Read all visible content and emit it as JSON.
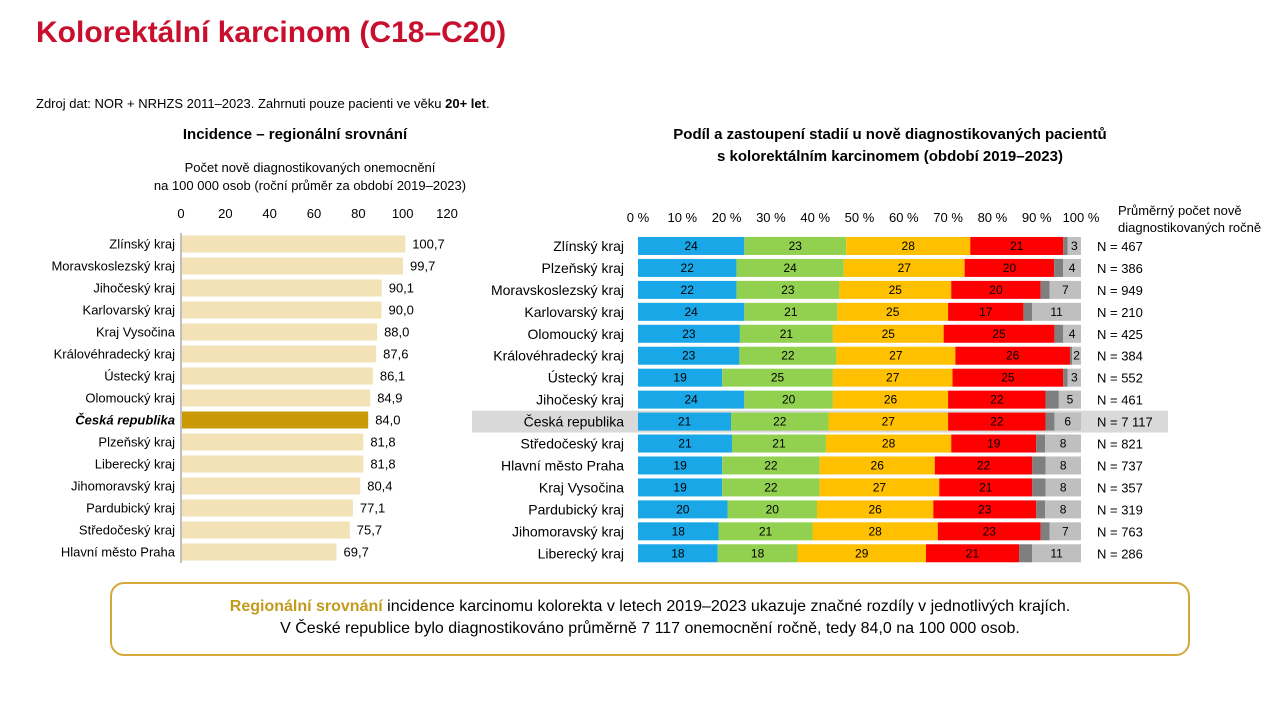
{
  "title": "Kolorektální karcinom (C18–C20)",
  "source": {
    "text": "Zdroj dat: NOR + NRHZS 2011–2023. Zahrnuti pouze pacienti ve věku ",
    "bold": "20+ let",
    "end": "."
  },
  "colors": {
    "bar": "#f2e2b6",
    "highlight_bar": "#c99a06",
    "stage1": "#1aa7e8",
    "stage2": "#92d050",
    "stage3": "#ffc000",
    "stage4": "#ff0000",
    "unknown_dark": "#7f7f7f",
    "unknown_light": "#bfbfbf",
    "highlight_row": "#d9d9d9",
    "accent": "#c8102e"
  },
  "chart_data": [
    {
      "type": "bar",
      "orientation": "horizontal",
      "title": "Incidence – regionální srovnání",
      "xlabel_lines": [
        "Počet nově diagnostikovaných onemocnění",
        "na 100 000 osob (roční průměr za období 2019–2023)"
      ],
      "xlim": [
        0,
        120
      ],
      "xticks": [
        "0",
        "20",
        "40",
        "60",
        "80",
        "100",
        "120"
      ],
      "highlight_category": "Česká republika",
      "categories": [
        "Zlínský kraj",
        "Moravskoslezský kraj",
        "Jihočeský kraj",
        "Karlovarský kraj",
        "Kraj Vysočina",
        "Královéhradecký kraj",
        "Ústecký kraj",
        "Olomoucký kraj",
        "Česká republika",
        "Plzeňský kraj",
        "Liberecký kraj",
        "Jihomoravský kraj",
        "Pardubický kraj",
        "Středočeský kraj",
        "Hlavní město Praha"
      ],
      "values": [
        100.7,
        99.7,
        90.1,
        90.0,
        88.0,
        87.6,
        86.1,
        84.9,
        84.0,
        81.8,
        81.8,
        80.4,
        77.1,
        75.7,
        69.7
      ],
      "value_labels": [
        "100,7",
        "99,7",
        "90,1",
        "90,0",
        "88,0",
        "87,6",
        "86,1",
        "84,9",
        "84,0",
        "81,8",
        "81,8",
        "80,4",
        "77,1",
        "75,7",
        "69,7"
      ]
    },
    {
      "type": "bar",
      "orientation": "horizontal",
      "stacked": "percent",
      "title_lines": [
        "Podíl a zastoupení stadií u nově diagnostikovaných pacientů",
        "s kolorektálním karcinomem (období 2019–2023)"
      ],
      "xlim": [
        0,
        100
      ],
      "xticks": [
        "0 %",
        "10 %",
        "20 %",
        "30 %",
        "40 %",
        "50 %",
        "60 %",
        "70 %",
        "80 %",
        "90 %",
        "100 %"
      ],
      "n_header_lines": [
        "Průměrný počet nově",
        "diagnostikovaných ročně"
      ],
      "highlight_category": "Česká republika",
      "categories": [
        "Zlínský kraj",
        "Plzeňský kraj",
        "Moravskoslezský kraj",
        "Karlovarský kraj",
        "Olomoucký kraj",
        "Královéhradecký kraj",
        "Ústecký kraj",
        "Jihočeský kraj",
        "Česká republika",
        "Středočeský kraj",
        "Hlavní město Praha",
        "Kraj Vysočina",
        "Pardubický kraj",
        "Jihomoravský kraj",
        "Liberecký kraj"
      ],
      "stage_values": [
        [
          24,
          23,
          28,
          21,
          1,
          3
        ],
        [
          22,
          24,
          27,
          20,
          2,
          4
        ],
        [
          22,
          23,
          25,
          20,
          2,
          7
        ],
        [
          24,
          21,
          25,
          17,
          2,
          11
        ],
        [
          23,
          21,
          25,
          25,
          2,
          4
        ],
        [
          23,
          22,
          27,
          26,
          0.5,
          2
        ],
        [
          19,
          25,
          27,
          25,
          1,
          3
        ],
        [
          24,
          20,
          26,
          22,
          3,
          5
        ],
        [
          21,
          22,
          27,
          22,
          2,
          6
        ],
        [
          21,
          21,
          28,
          19,
          2,
          8
        ],
        [
          19,
          22,
          26,
          22,
          3,
          8
        ],
        [
          19,
          22,
          27,
          21,
          3,
          8
        ],
        [
          20,
          20,
          26,
          23,
          2,
          8
        ],
        [
          18,
          21,
          28,
          23,
          2,
          7
        ],
        [
          18,
          18,
          29,
          21,
          3,
          11
        ]
      ],
      "segment_labels": [
        [
          "24",
          "23",
          "28",
          "21",
          "",
          "3"
        ],
        [
          "22",
          "24",
          "27",
          "20",
          "",
          "4"
        ],
        [
          "22",
          "23",
          "25",
          "20",
          "",
          "7"
        ],
        [
          "24",
          "21",
          "25",
          "17",
          "",
          "11"
        ],
        [
          "23",
          "21",
          "25",
          "25",
          "",
          "4"
        ],
        [
          "23",
          "22",
          "27",
          "26",
          "",
          "2"
        ],
        [
          "19",
          "25",
          "27",
          "25",
          "",
          "3"
        ],
        [
          "24",
          "20",
          "26",
          "22",
          "",
          "5"
        ],
        [
          "21",
          "22",
          "27",
          "22",
          "",
          "6"
        ],
        [
          "21",
          "21",
          "28",
          "19",
          "",
          "8"
        ],
        [
          "19",
          "22",
          "26",
          "22",
          "",
          "8"
        ],
        [
          "19",
          "22",
          "27",
          "21",
          "",
          "8"
        ],
        [
          "20",
          "20",
          "26",
          "23",
          "",
          "8"
        ],
        [
          "18",
          "21",
          "28",
          "23",
          "",
          "7"
        ],
        [
          "18",
          "18",
          "29",
          "21",
          "",
          "11"
        ]
      ],
      "n_labels": [
        "N = 467",
        "N = 386",
        "N = 949",
        "N = 210",
        "N = 425",
        "N = 384",
        "N = 552",
        "N = 461",
        "N = 7 117",
        "N = 821",
        "N = 737",
        "N = 357",
        "N = 319",
        "N = 763",
        "N = 286"
      ]
    }
  ],
  "summary": {
    "highlight": "Regionální srovnání",
    "line1_rest": " incidence karcinomu kolorekta v letech 2019–2023 ukazuje značné rozdíly v jednotlivých krajích.",
    "line2": "V České republice bylo diagnostikováno průměrně 7 117 onemocnění ročně, tedy 84,0 na 100 000 osob."
  }
}
